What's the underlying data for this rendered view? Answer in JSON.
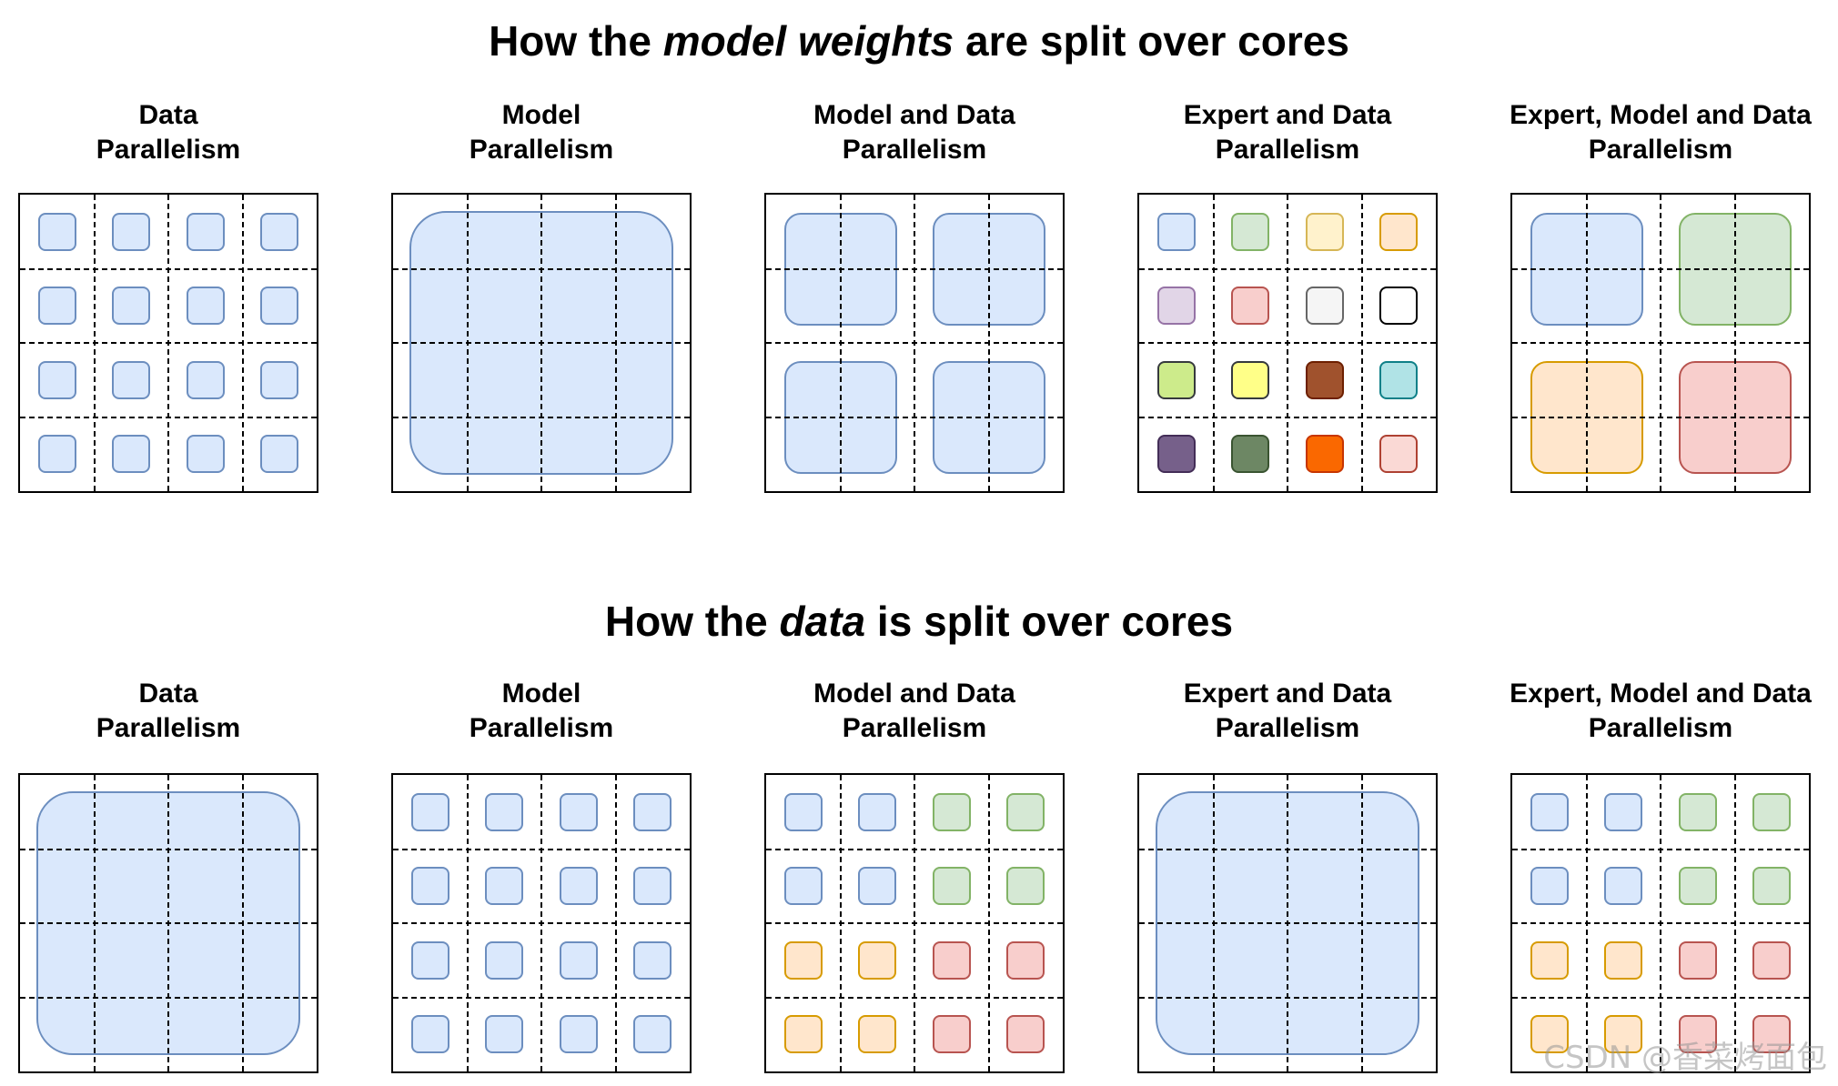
{
  "titles": {
    "weights": {
      "prefix": "How the ",
      "emph": "model weights",
      "suffix": " are split over cores"
    },
    "data": {
      "prefix": "How the ",
      "emph": "data",
      "suffix": " is split over cores"
    }
  },
  "colors": {
    "blue": {
      "fill": "#dae8fc",
      "stroke": "#6c8ebf"
    },
    "green": {
      "fill": "#d5e8d4",
      "stroke": "#82b366"
    },
    "orange": {
      "fill": "#ffe6cc",
      "stroke": "#d79b00"
    },
    "red": {
      "fill": "#f8cecc",
      "stroke": "#b85450"
    },
    "lightyellow": {
      "fill": "#fff2cc",
      "stroke": "#d6b656"
    },
    "purple": {
      "fill": "#e1d5e7",
      "stroke": "#9673a6"
    },
    "gray": {
      "fill": "#f5f5f5",
      "stroke": "#666666"
    },
    "white": {
      "fill": "#ffffff",
      "stroke": "#000000"
    },
    "lime": {
      "fill": "#cdeb8b",
      "stroke": "#36393d"
    },
    "yellow": {
      "fill": "#ffff88",
      "stroke": "#36393d"
    },
    "brown": {
      "fill": "#a0522d",
      "stroke": "#6d1f00"
    },
    "cyan": {
      "fill": "#b0e3e6",
      "stroke": "#0e8088"
    },
    "darkpurple": {
      "fill": "#76608a",
      "stroke": "#432d57"
    },
    "darkgreen": {
      "fill": "#6d8764",
      "stroke": "#3a5431"
    },
    "bright-orange": {
      "fill": "#fa6800",
      "stroke": "#c73500"
    },
    "pink": {
      "fill": "#fad9d5",
      "stroke": "#ae4132"
    }
  },
  "panels": [
    {
      "id": "w-data",
      "row": "weights",
      "col": 0,
      "title": [
        "Data",
        "Parallelism"
      ],
      "layout": "cells16",
      "colors": [
        "blue",
        "blue",
        "blue",
        "blue",
        "blue",
        "blue",
        "blue",
        "blue",
        "blue",
        "blue",
        "blue",
        "blue",
        "blue",
        "blue",
        "blue",
        "blue"
      ]
    },
    {
      "id": "w-model",
      "row": "weights",
      "col": 1,
      "title": [
        "Model",
        "Parallelism"
      ],
      "layout": "single",
      "colors": [
        "blue"
      ]
    },
    {
      "id": "w-model-data",
      "row": "weights",
      "col": 2,
      "title": [
        "Model and Data",
        "Parallelism"
      ],
      "layout": "quad",
      "colors": [
        "blue",
        "blue",
        "blue",
        "blue"
      ]
    },
    {
      "id": "w-expert-data",
      "row": "weights",
      "col": 3,
      "title": [
        "Expert and Data",
        "Parallelism"
      ],
      "layout": "cells16",
      "colors": [
        "blue",
        "green",
        "lightyellow",
        "orange",
        "purple",
        "red",
        "gray",
        "white",
        "lime",
        "yellow",
        "brown",
        "cyan",
        "darkpurple",
        "darkgreen",
        "bright-orange",
        "pink"
      ]
    },
    {
      "id": "w-expert-model-data",
      "row": "weights",
      "col": 4,
      "title": [
        "Expert, Model and Data",
        "Parallelism"
      ],
      "layout": "quad",
      "colors": [
        "blue",
        "green",
        "orange",
        "red"
      ]
    },
    {
      "id": "d-data",
      "row": "data",
      "col": 0,
      "title": [
        "Data",
        "Parallelism"
      ],
      "layout": "single",
      "colors": [
        "blue"
      ]
    },
    {
      "id": "d-model",
      "row": "data",
      "col": 1,
      "title": [
        "Model",
        "Parallelism"
      ],
      "layout": "cells16",
      "colors": [
        "blue",
        "blue",
        "blue",
        "blue",
        "blue",
        "blue",
        "blue",
        "blue",
        "blue",
        "blue",
        "blue",
        "blue",
        "blue",
        "blue",
        "blue",
        "blue"
      ]
    },
    {
      "id": "d-model-data",
      "row": "data",
      "col": 2,
      "title": [
        "Model and Data",
        "Parallelism"
      ],
      "layout": "cells16",
      "colors": [
        "blue",
        "blue",
        "green",
        "green",
        "blue",
        "blue",
        "green",
        "green",
        "orange",
        "orange",
        "red",
        "red",
        "orange",
        "orange",
        "red",
        "red"
      ]
    },
    {
      "id": "d-expert-data",
      "row": "data",
      "col": 3,
      "title": [
        "Expert and Data",
        "Parallelism"
      ],
      "layout": "single",
      "colors": [
        "blue"
      ]
    },
    {
      "id": "d-expert-model-data",
      "row": "data",
      "col": 4,
      "title": [
        "Expert, Model and Data",
        "Parallelism"
      ],
      "layout": "cells16",
      "colors": [
        "blue",
        "blue",
        "green",
        "green",
        "blue",
        "blue",
        "green",
        "green",
        "orange",
        "orange",
        "red",
        "red",
        "orange",
        "orange",
        "red",
        "red"
      ]
    }
  ],
  "watermark": "CSDN @香菜烤面包"
}
